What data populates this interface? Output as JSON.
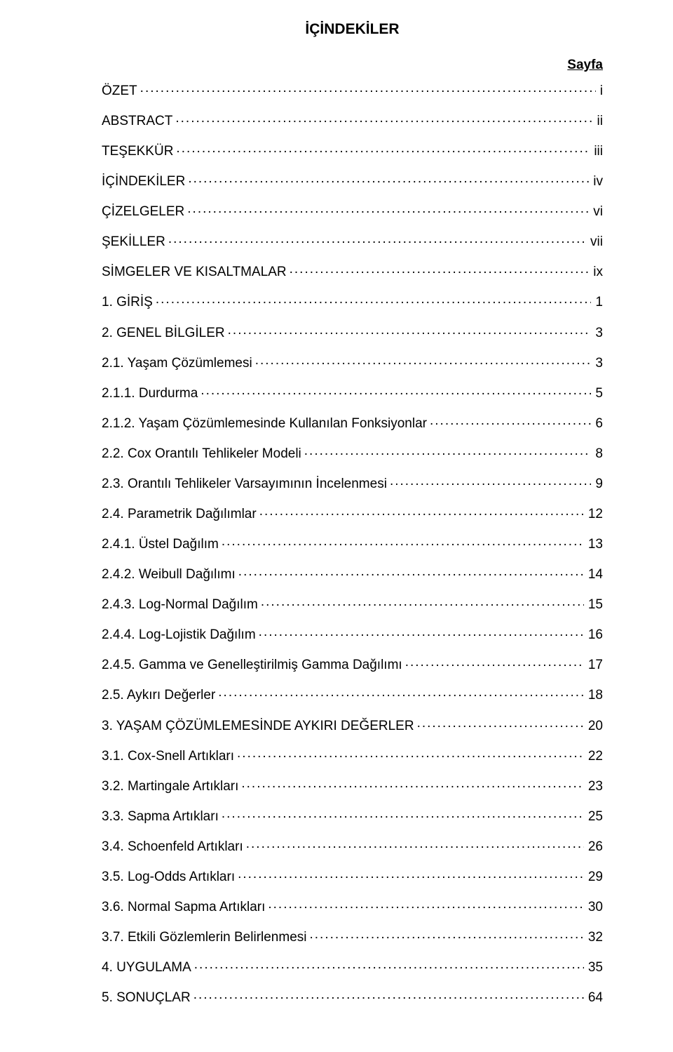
{
  "title": "İÇİNDEKİLER",
  "page_header": "Sayfa",
  "typography": {
    "title_fontsize": 21,
    "body_fontsize": 19,
    "title_weight": 700,
    "color": "#000000",
    "background": "#ffffff",
    "leader_char": "."
  },
  "entries": [
    {
      "label": "ÖZET",
      "page": "i",
      "indent": 0
    },
    {
      "label": "ABSTRACT",
      "page": "ii",
      "indent": 0
    },
    {
      "label": "TEŞEKKÜR",
      "page": "iii",
      "indent": 0
    },
    {
      "label": "İÇİNDEKİLER",
      "page": "iv",
      "indent": 0
    },
    {
      "label": "ÇİZELGELER",
      "page": "vi",
      "indent": 0
    },
    {
      "label": "ŞEKİLLER",
      "page": "vii",
      "indent": 0
    },
    {
      "label": "SİMGELER VE KISALTMALAR",
      "page": "ix",
      "indent": 0
    },
    {
      "label": "1. GİRİŞ",
      "page": "1",
      "indent": 0
    },
    {
      "label": "2. GENEL BİLGİLER",
      "page": "3",
      "indent": 0
    },
    {
      "label": "2.1. Yaşam Çözümlemesi",
      "page": "3",
      "indent": 0
    },
    {
      "label": "2.1.1. Durdurma",
      "page": "5",
      "indent": 0
    },
    {
      "label": "2.1.2. Yaşam Çözümlemesinde Kullanılan Fonksiyonlar",
      "page": "6",
      "indent": 0
    },
    {
      "label": "2.2. Cox Orantılı Tehlikeler Modeli",
      "page": "8",
      "indent": 0
    },
    {
      "label": "2.3. Orantılı Tehlikeler Varsayımının İncelenmesi",
      "page": "9",
      "indent": 0
    },
    {
      "label": "2.4. Parametrik Dağılımlar",
      "page": "12",
      "indent": 0
    },
    {
      "label": "2.4.1. Üstel Dağılım",
      "page": "13",
      "indent": 0
    },
    {
      "label": "2.4.2. Weibull Dağılımı",
      "page": "14",
      "indent": 0
    },
    {
      "label": "2.4.3. Log-Normal Dağılım",
      "page": "15",
      "indent": 0
    },
    {
      "label": "2.4.4. Log-Lojistik Dağılım",
      "page": "16",
      "indent": 0
    },
    {
      "label": "2.4.5. Gamma ve Genelleştirilmiş Gamma Dağılımı",
      "page": "17",
      "indent": 0
    },
    {
      "label": "2.5. Aykırı Değerler",
      "page": "18",
      "indent": 0
    },
    {
      "label": "3. YAŞAM ÇÖZÜMLEMESİNDE AYKIRI DEĞERLER",
      "page": "20",
      "indent": 0
    },
    {
      "label": "3.1. Cox-Snell Artıkları",
      "page": "22",
      "indent": 0
    },
    {
      "label": "3.2. Martingale Artıkları",
      "page": "23",
      "indent": 0
    },
    {
      "label": "3.3. Sapma Artıkları",
      "page": "25",
      "indent": 0
    },
    {
      "label": "3.4. Schoenfeld Artıkları",
      "page": "26",
      "indent": 0
    },
    {
      "label": "3.5. Log-Odds Artıkları",
      "page": "29",
      "indent": 0
    },
    {
      "label": "3.6. Normal Sapma Artıkları",
      "page": "30",
      "indent": 0
    },
    {
      "label": "3.7. Etkili Gözlemlerin Belirlenmesi",
      "page": "32",
      "indent": 0
    },
    {
      "label": "4. UYGULAMA",
      "page": "35",
      "indent": 0
    },
    {
      "label": "5. SONUÇLAR",
      "page": "64",
      "indent": 0
    }
  ]
}
